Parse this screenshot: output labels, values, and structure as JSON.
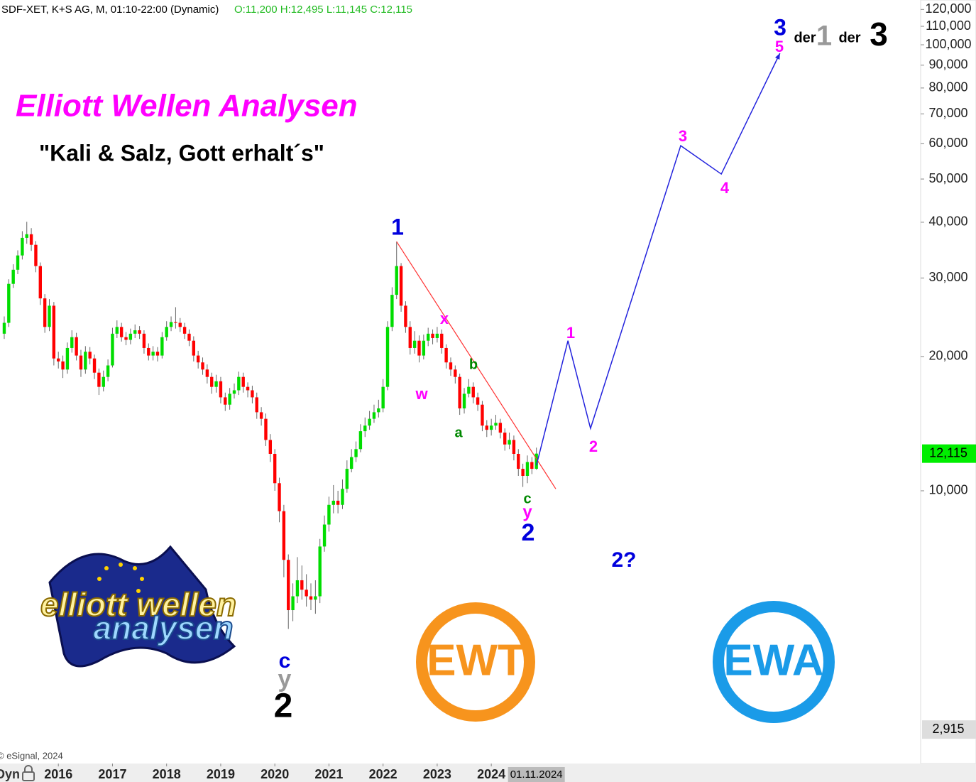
{
  "chart_data": {
    "type": "candlestick",
    "header": {
      "symbol": "SDF-XET, K+S AG, M, 01:10-22:00 (Dynamic)",
      "ohlc_text": "O:11,200 H:12,495 L:11,145 C:12,115"
    },
    "log_scale": true,
    "ylim": [
      2446,
      126000
    ],
    "xlim": [
      -0.94,
      203.2
    ],
    "yticks": [
      {
        "value": 10000,
        "label": "10,000"
      },
      {
        "value": 20000,
        "label": "20,000"
      },
      {
        "value": 30000,
        "label": "30,000"
      },
      {
        "value": 40000,
        "label": "40,000"
      },
      {
        "value": 50000,
        "label": "50,000"
      },
      {
        "value": 60000,
        "label": "60,000"
      },
      {
        "value": 70000,
        "label": "70,000"
      },
      {
        "value": 80000,
        "label": "80,000"
      },
      {
        "value": 90000,
        "label": "90,000"
      },
      {
        "value": 100000,
        "label": "100,000"
      },
      {
        "value": 110000,
        "label": "110,000"
      },
      {
        "value": 120000,
        "label": "120,000"
      }
    ],
    "xticks": [
      {
        "value": 12,
        "label": "2016"
      },
      {
        "value": 24,
        "label": "2017"
      },
      {
        "value": 36,
        "label": "2018"
      },
      {
        "value": 48,
        "label": "2019"
      },
      {
        "value": 60,
        "label": "2020"
      },
      {
        "value": 72,
        "label": "2021"
      },
      {
        "value": 84,
        "label": "2022"
      },
      {
        "value": 96,
        "label": "2023"
      },
      {
        "value": 108,
        "label": "2024"
      }
    ],
    "cursor_date": {
      "value": 118,
      "label": "01.11.2024"
    },
    "last_price": {
      "value": 12115,
      "label": "12,115"
    },
    "bottom_price": {
      "value": 2915,
      "label": "2,915"
    },
    "up_color": "#00dd00",
    "down_color": "#ff0000",
    "ohlc": [
      [
        22500,
        24600,
        21900,
        23800
      ],
      [
        23800,
        29800,
        23300,
        29100
      ],
      [
        29100,
        32200,
        28500,
        31300
      ],
      [
        31300,
        34600,
        30600,
        33700
      ],
      [
        33700,
        38200,
        33000,
        36900
      ],
      [
        36900,
        40100,
        35800,
        37600
      ],
      [
        37600,
        38800,
        34500,
        35600
      ],
      [
        35600,
        36300,
        30900,
        31900
      ],
      [
        31900,
        32500,
        26100,
        27000
      ],
      [
        27000,
        27600,
        22600,
        23300
      ],
      [
        23300,
        26900,
        22800,
        26000
      ],
      [
        26000,
        26500,
        19100,
        19800
      ],
      [
        19800,
        20500,
        18800,
        19500
      ],
      [
        19500,
        20100,
        17900,
        18700
      ],
      [
        18700,
        21500,
        18300,
        20900
      ],
      [
        20900,
        22900,
        20400,
        22100
      ],
      [
        22100,
        22600,
        19600,
        20100
      ],
      [
        20100,
        20700,
        18000,
        18700
      ],
      [
        18700,
        21100,
        18300,
        20500
      ],
      [
        20500,
        21000,
        19200,
        19800
      ],
      [
        19800,
        20200,
        17800,
        18400
      ],
      [
        18400,
        18800,
        16400,
        17100
      ],
      [
        17100,
        18600,
        16700,
        18000
      ],
      [
        18000,
        19700,
        17600,
        19100
      ],
      [
        19100,
        23200,
        18900,
        22500
      ],
      [
        22500,
        24100,
        22000,
        23300
      ],
      [
        23300,
        23800,
        21600,
        22100
      ],
      [
        22100,
        22700,
        21200,
        21800
      ],
      [
        21800,
        23100,
        21300,
        22500
      ],
      [
        22500,
        23600,
        22000,
        22900
      ],
      [
        22900,
        23400,
        21900,
        22500
      ],
      [
        22500,
        22900,
        20300,
        20900
      ],
      [
        20900,
        21400,
        19600,
        20100
      ],
      [
        20100,
        21100,
        19600,
        20500
      ],
      [
        20500,
        21000,
        19500,
        20100
      ],
      [
        20100,
        22700,
        19800,
        22100
      ],
      [
        22100,
        24000,
        21700,
        23300
      ],
      [
        23300,
        24600,
        22800,
        23900
      ],
      [
        23900,
        25800,
        23100,
        23800
      ],
      [
        23800,
        24400,
        22700,
        23300
      ],
      [
        23300,
        23800,
        21900,
        22500
      ],
      [
        22500,
        23000,
        21100,
        21700
      ],
      [
        21700,
        22200,
        19500,
        20100
      ],
      [
        20100,
        20600,
        18800,
        19400
      ],
      [
        19400,
        19900,
        18200,
        18700
      ],
      [
        18700,
        19200,
        17400,
        18000
      ],
      [
        18000,
        18400,
        16500,
        17100
      ],
      [
        17100,
        18200,
        16600,
        17600
      ],
      [
        17600,
        18000,
        15700,
        16200
      ],
      [
        16200,
        16600,
        15100,
        15600
      ],
      [
        15600,
        17000,
        15200,
        16500
      ],
      [
        16500,
        17400,
        16100,
        16800
      ],
      [
        16800,
        18500,
        16400,
        18000
      ],
      [
        18000,
        18400,
        16600,
        17100
      ],
      [
        17100,
        17500,
        16200,
        16800
      ],
      [
        16800,
        17200,
        15700,
        16200
      ],
      [
        16200,
        16600,
        14500,
        15000
      ],
      [
        15000,
        15400,
        14000,
        14500
      ],
      [
        14500,
        14900,
        12600,
        13000
      ],
      [
        13000,
        13400,
        11600,
        12100
      ],
      [
        12100,
        12400,
        10000,
        10400
      ],
      [
        10400,
        10700,
        8500,
        9000
      ],
      [
        9000,
        9300,
        6400,
        7000
      ],
      [
        7000,
        7200,
        4900,
        5400
      ],
      [
        5400,
        6200,
        5100,
        5800
      ],
      [
        5800,
        7100,
        5600,
        6300
      ],
      [
        6300,
        6800,
        5700,
        6000
      ],
      [
        6000,
        6500,
        5500,
        5800
      ],
      [
        5800,
        6200,
        5400,
        5700
      ],
      [
        5700,
        6300,
        5300,
        5800
      ],
      [
        5800,
        7800,
        5600,
        7500
      ],
      [
        7500,
        8800,
        7300,
        8400
      ],
      [
        8400,
        9700,
        8100,
        9300
      ],
      [
        9300,
        10300,
        8900,
        9500
      ],
      [
        9500,
        10000,
        8900,
        9300
      ],
      [
        9300,
        10600,
        9100,
        10100
      ],
      [
        10100,
        11700,
        9900,
        11200
      ],
      [
        11200,
        12400,
        11000,
        11900
      ],
      [
        11900,
        12900,
        11600,
        12400
      ],
      [
        12400,
        14100,
        12200,
        13600
      ],
      [
        13600,
        14600,
        13200,
        14000
      ],
      [
        14000,
        15100,
        13700,
        14500
      ],
      [
        14500,
        15600,
        14200,
        15000
      ],
      [
        15000,
        16000,
        14600,
        15300
      ],
      [
        15300,
        17800,
        15000,
        17100
      ],
      [
        17100,
        24000,
        16800,
        23300
      ],
      [
        23300,
        28600,
        22800,
        27500
      ],
      [
        27500,
        36200,
        26900,
        31900
      ],
      [
        31900,
        32400,
        25200,
        26000
      ],
      [
        26000,
        26600,
        22600,
        23300
      ],
      [
        23300,
        24000,
        20200,
        20900
      ],
      [
        20900,
        22800,
        20300,
        21700
      ],
      [
        21700,
        22300,
        19400,
        20100
      ],
      [
        20100,
        22400,
        19700,
        21700
      ],
      [
        21700,
        23200,
        21100,
        22500
      ],
      [
        22500,
        23000,
        21300,
        22000
      ],
      [
        22000,
        23300,
        21500,
        22500
      ],
      [
        22500,
        23000,
        20300,
        20900
      ],
      [
        20900,
        21300,
        18800,
        19400
      ],
      [
        19400,
        19900,
        18100,
        18700
      ],
      [
        18700,
        19100,
        17400,
        18000
      ],
      [
        18000,
        18300,
        14800,
        15300
      ],
      [
        15300,
        17000,
        14900,
        16500
      ],
      [
        16500,
        17800,
        16200,
        17100
      ],
      [
        17100,
        17500,
        15700,
        16200
      ],
      [
        16200,
        16600,
        15100,
        15600
      ],
      [
        15600,
        15900,
        13600,
        14000
      ],
      [
        14000,
        14400,
        13200,
        13700
      ],
      [
        13700,
        14500,
        13300,
        14000
      ],
      [
        14000,
        14800,
        13700,
        14200
      ],
      [
        14200,
        14500,
        13100,
        13500
      ],
      [
        13500,
        13800,
        12300,
        12700
      ],
      [
        12700,
        13500,
        12400,
        13000
      ],
      [
        13000,
        13300,
        11700,
        12100
      ],
      [
        12100,
        12400,
        10800,
        11200
      ],
      [
        11200,
        11500,
        10200,
        10800
      ],
      [
        10800,
        12000,
        10400,
        11600
      ],
      [
        11600,
        11900,
        10900,
        11200
      ],
      [
        11200,
        12495,
        11145,
        12115
      ]
    ],
    "trendline": {
      "color": "#ff3333",
      "x": [
        87,
        122.3
      ],
      "values": [
        36200,
        10100
      ]
    },
    "projection": {
      "color": "#2222dd",
      "x": [
        118,
        125,
        130,
        150,
        159,
        172
      ],
      "values": [
        11400,
        21700,
        13800,
        59400,
        51300,
        95700
      ]
    },
    "annotations": [
      {
        "text": "Elliott Wellen Analysen",
        "color": "#ff00ff"
      },
      {
        "text": "\"Kali & Salz, Gott erhalt´s\"",
        "color": "#000000"
      },
      {
        "text": "1",
        "color": "#0000dd"
      },
      {
        "text": "x",
        "color": "#ff00ff"
      },
      {
        "text": "w",
        "color": "#ff00ff"
      },
      {
        "text": "b",
        "color": "#008800"
      },
      {
        "text": "a",
        "color": "#008800"
      },
      {
        "text": "c",
        "color": "#008800"
      },
      {
        "text": "y",
        "color": "#ff00ff"
      },
      {
        "text": "2",
        "color": "#0000dd"
      },
      {
        "text": "c",
        "color": "#0000dd"
      },
      {
        "text": "y",
        "color": "#999999"
      },
      {
        "text": "2",
        "color": "#000000"
      },
      {
        "text": "1",
        "color": "#ff00ff"
      },
      {
        "text": "2",
        "color": "#ff00ff"
      },
      {
        "text": "3",
        "color": "#ff00ff"
      },
      {
        "text": "4",
        "color": "#ff00ff"
      },
      {
        "text": "5",
        "color": "#ff00ff"
      },
      {
        "text": "3",
        "color": "#0000dd"
      },
      {
        "text": "der",
        "color": "#000000"
      },
      {
        "text": "1",
        "color": "#999999"
      },
      {
        "text": "der",
        "color": "#000000"
      },
      {
        "text": "3",
        "color": "#000000"
      },
      {
        "text": "2?",
        "color": "#0000dd"
      }
    ],
    "footer": {
      "copyright": "© eSignal, 2024",
      "mode": "Dyn"
    },
    "logos": {
      "ew_top": "elliott wellen",
      "ew_bottom": "analysen",
      "ewt": "EWT",
      "ewa": "EWA"
    }
  }
}
